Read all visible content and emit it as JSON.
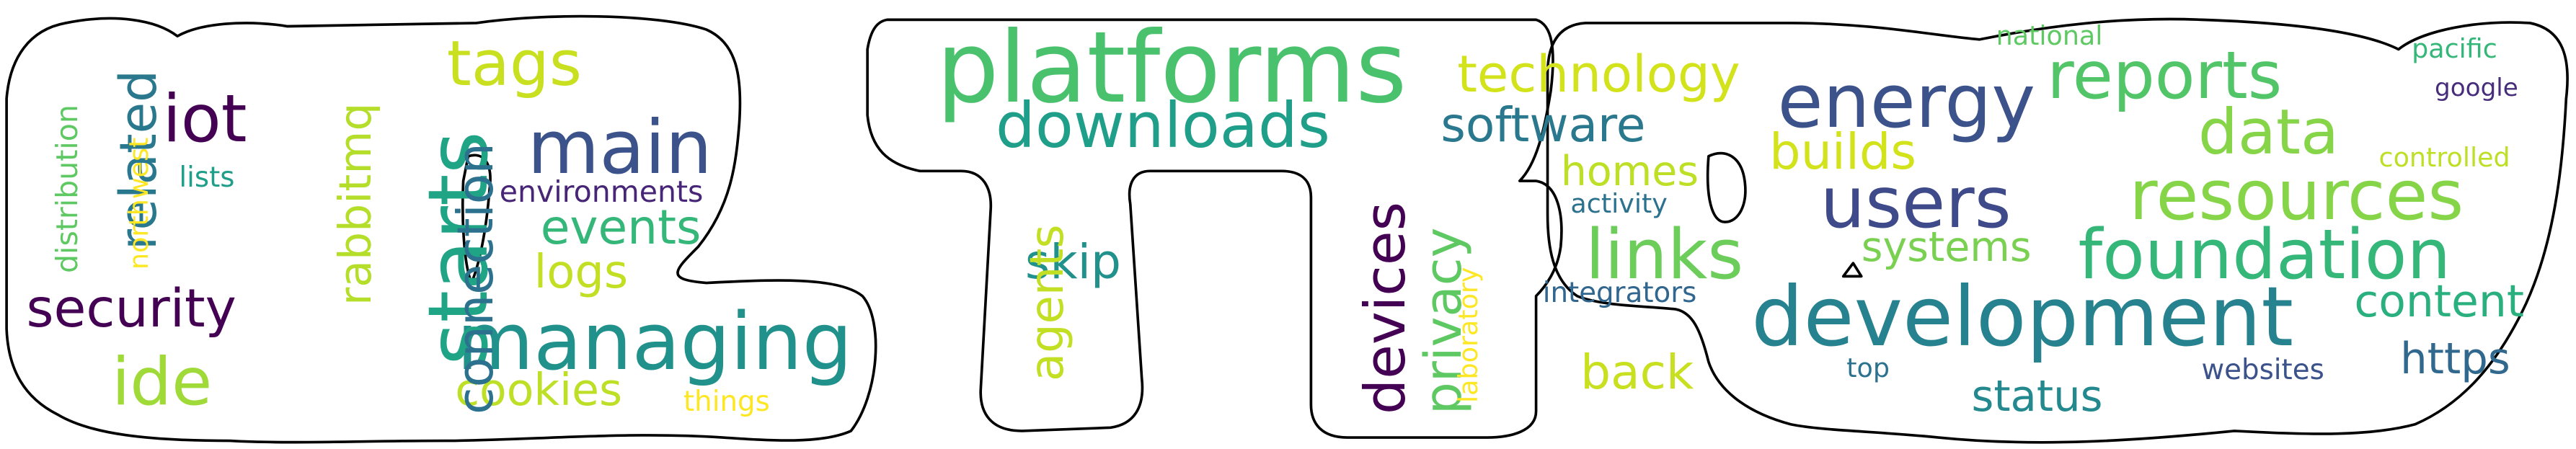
{
  "words": [
    {
      "text": "platforms",
      "color": "#4ac16d"
    },
    {
      "text": "downloads",
      "color": "#1f9e89"
    },
    {
      "text": "technology",
      "color": "#d2e21b"
    },
    {
      "text": "energy",
      "color": "#3b528b"
    },
    {
      "text": "reports",
      "color": "#52c569"
    },
    {
      "text": "data",
      "color": "#86d549"
    },
    {
      "text": "resources",
      "color": "#86d549"
    },
    {
      "text": "foundation",
      "color": "#35b779"
    },
    {
      "text": "users",
      "color": "#3e4a89"
    },
    {
      "text": "development",
      "color": "#26828e"
    },
    {
      "text": "software",
      "color": "#2a788e"
    },
    {
      "text": "builds",
      "color": "#d2e21b"
    },
    {
      "text": "homes",
      "color": "#bddf26"
    },
    {
      "text": "links",
      "color": "#6ccd5a"
    },
    {
      "text": "systems",
      "color": "#7ad151"
    },
    {
      "text": "content",
      "color": "#2ab07f"
    },
    {
      "text": "national",
      "color": "#5ec962"
    },
    {
      "text": "pacific",
      "color": "#35b779"
    },
    {
      "text": "google",
      "color": "#472d7b"
    },
    {
      "text": "controlled",
      "color": "#bddf26"
    },
    {
      "text": "activity",
      "color": "#2c718e"
    },
    {
      "text": "integrators",
      "color": "#31668e"
    },
    {
      "text": "back",
      "color": "#c8e020"
    },
    {
      "text": "top",
      "color": "#2c728e"
    },
    {
      "text": "status",
      "color": "#23898e"
    },
    {
      "text": "websites",
      "color": "#3b528b"
    },
    {
      "text": "https",
      "color": "#31688e"
    },
    {
      "text": "skip",
      "color": "#21918c"
    },
    {
      "text": "agents",
      "color": "#c2df23"
    },
    {
      "text": "devices",
      "color": "#440154"
    },
    {
      "text": "privacy",
      "color": "#5ec962"
    },
    {
      "text": "laboratory",
      "color": "#fde725"
    },
    {
      "text": "iot",
      "color": "#440154"
    },
    {
      "text": "tags",
      "color": "#c8e020"
    },
    {
      "text": "main",
      "color": "#3b528b"
    },
    {
      "text": "environments",
      "color": "#482677"
    },
    {
      "text": "events",
      "color": "#35b779"
    },
    {
      "text": "logs",
      "color": "#c2df23"
    },
    {
      "text": "managing",
      "color": "#21918c"
    },
    {
      "text": "cookies",
      "color": "#bddf26"
    },
    {
      "text": "things",
      "color": "#fde725"
    },
    {
      "text": "security",
      "color": "#440154"
    },
    {
      "text": "ide",
      "color": "#a0da39"
    },
    {
      "text": "lists",
      "color": "#1f9e89"
    },
    {
      "text": "related",
      "color": "#2a788e"
    },
    {
      "text": "northwest",
      "color": "#fde725"
    },
    {
      "text": "distribution",
      "color": "#5ec962"
    },
    {
      "text": "rabbitmq",
      "color": "#b5de2b"
    },
    {
      "text": "starts",
      "color": "#20a486"
    },
    {
      "text": "connection",
      "color": "#2c728e"
    }
  ]
}
